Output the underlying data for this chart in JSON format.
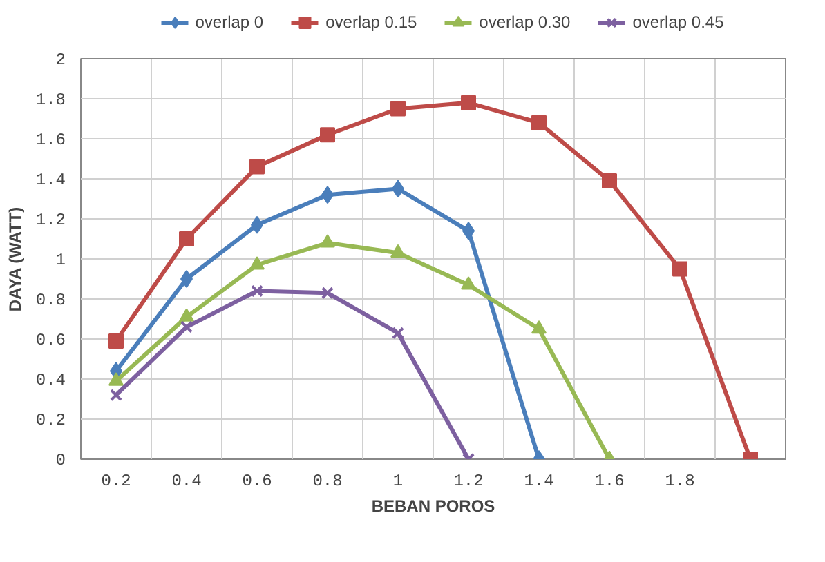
{
  "chart_data": {
    "type": "line",
    "xlabel": "BEBAN POROS",
    "ylabel": "DAYA (WATT)",
    "categories": [
      "0.2",
      "0.4",
      "0.6",
      "0.8",
      "1",
      "1.2",
      "1.4",
      "1.6",
      "1.8",
      null
    ],
    "ylim": [
      0,
      2
    ],
    "yticks": [
      0,
      0.2,
      0.4,
      0.6,
      0.8,
      1,
      1.2,
      1.4,
      1.6,
      1.8,
      2
    ],
    "grid": true,
    "legend": "top",
    "series": [
      {
        "name": "overlap 0",
        "color": "#4a7ebb",
        "marker": "diamond",
        "values": [
          0.44,
          0.9,
          1.17,
          1.32,
          1.35,
          1.14,
          0,
          null,
          null,
          null
        ]
      },
      {
        "name": "overlap 0.15",
        "color": "#be4b48",
        "marker": "square",
        "values": [
          0.59,
          1.1,
          1.46,
          1.62,
          1.75,
          1.78,
          1.68,
          1.39,
          0.95,
          0
        ]
      },
      {
        "name": "overlap 0.30",
        "color": "#98b954",
        "marker": "triangle",
        "values": [
          0.39,
          0.71,
          0.97,
          1.08,
          1.03,
          0.87,
          0.65,
          0,
          null,
          null
        ]
      },
      {
        "name": "overlap 0.45",
        "color": "#7d60a0",
        "marker": "cross",
        "values": [
          0.32,
          0.66,
          0.84,
          0.83,
          0.63,
          0,
          null,
          null,
          null,
          null
        ]
      }
    ]
  }
}
